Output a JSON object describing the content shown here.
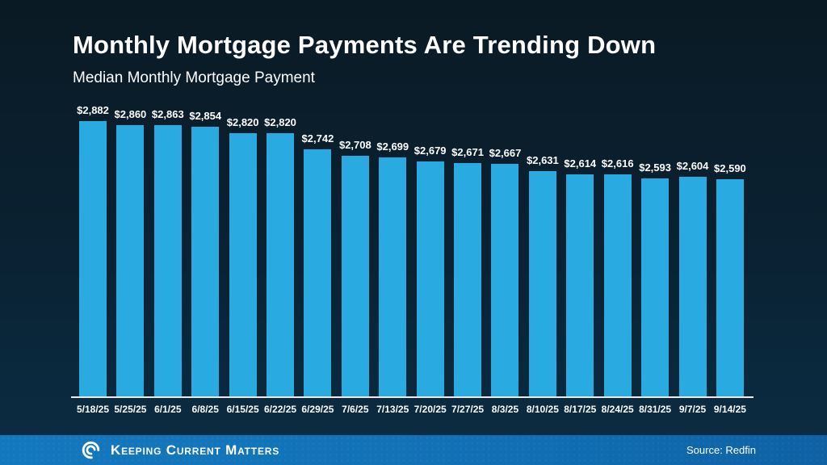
{
  "header": {
    "title": "Monthly Mortgage Payments Are Trending Down",
    "subtitle": "Median Monthly Mortgage Payment"
  },
  "chart_data": {
    "type": "bar",
    "title": "Monthly Mortgage Payments Are Trending Down",
    "subtitle": "Median Monthly Mortgage Payment",
    "categories": [
      "5/18/25",
      "5/25/25",
      "6/1/25",
      "6/8/25",
      "6/15/25",
      "6/22/25",
      "6/29/25",
      "7/6/25",
      "7/13/25",
      "7/20/25",
      "7/27/25",
      "8/3/25",
      "8/10/25",
      "8/17/25",
      "8/24/25",
      "8/31/25",
      "9/7/25",
      "9/14/25"
    ],
    "values": [
      2882,
      2860,
      2863,
      2854,
      2820,
      2820,
      2742,
      2708,
      2699,
      2679,
      2671,
      2667,
      2631,
      2614,
      2616,
      2593,
      2604,
      2590
    ],
    "value_labels": [
      "$2,882",
      "$2,860",
      "$2,863",
      "$2,854",
      "$2,820",
      "$2,820",
      "$2,742",
      "$2,708",
      "$2,699",
      "$2,679",
      "$2,671",
      "$2,667",
      "$2,631",
      "$2,614",
      "$2,616",
      "$2,593",
      "$2,604",
      "$2,590"
    ],
    "xlabel": "",
    "ylabel": "",
    "ylim": [
      1500,
      2890
    ],
    "grid": false,
    "legend": false,
    "bar_color": "#29abe2",
    "baseline_color": "#e9edf1"
  },
  "footer": {
    "brand": "Keeping Current Matters",
    "source": "Source: Redfin",
    "bar_color_left": "#1478be",
    "bar_color_right": "#0e61a4"
  }
}
